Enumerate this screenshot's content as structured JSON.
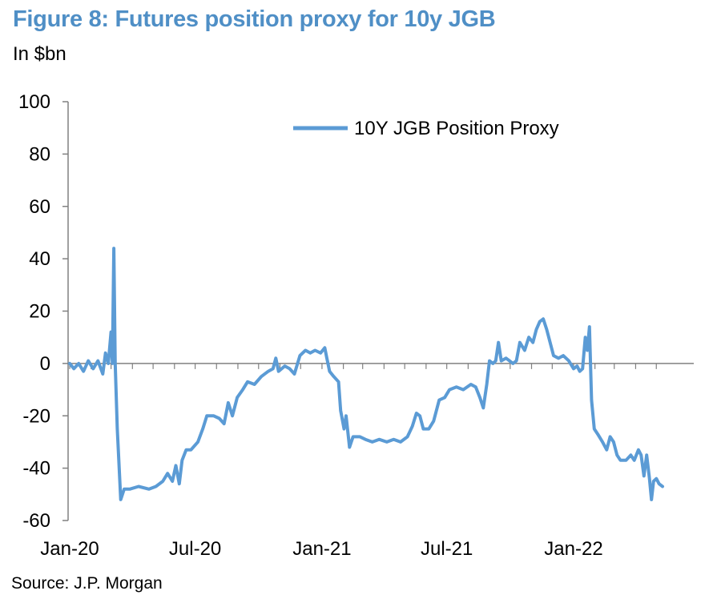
{
  "title": "Figure 8: Futures position proxy for 10y JGB",
  "subtitle": "In $bn",
  "source": "Source: J.P. Morgan",
  "colors": {
    "series": "#5b9bd5",
    "title": "#4f8fc6",
    "axis": "#808080"
  },
  "chart_data": {
    "type": "line",
    "ylim": [
      -60,
      100
    ],
    "yticks": [
      100,
      80,
      60,
      40,
      20,
      0,
      -20,
      -40,
      -60
    ],
    "xlim": [
      "2020-01-01",
      "2022-05-31"
    ],
    "xticks": [
      {
        "label": "Jan-20",
        "date": "2020-01-01"
      },
      {
        "label": "Jul-20",
        "date": "2020-07-01"
      },
      {
        "label": "Jan-21",
        "date": "2021-01-01"
      },
      {
        "label": "Jul-21",
        "date": "2021-07-01"
      },
      {
        "label": "Jan-22",
        "date": "2022-01-01"
      }
    ],
    "grid": false,
    "legend_position": "top-right",
    "series": [
      {
        "name": "10Y JGB Position Proxy",
        "points": [
          [
            "2020-01-01",
            0
          ],
          [
            "2020-01-07",
            -2
          ],
          [
            "2020-01-14",
            0
          ],
          [
            "2020-01-21",
            -3
          ],
          [
            "2020-01-28",
            1
          ],
          [
            "2020-02-04",
            -2
          ],
          [
            "2020-02-11",
            1
          ],
          [
            "2020-02-18",
            -4
          ],
          [
            "2020-02-22",
            4
          ],
          [
            "2020-02-26",
            0
          ],
          [
            "2020-03-01",
            12
          ],
          [
            "2020-03-03",
            0
          ],
          [
            "2020-03-05",
            44
          ],
          [
            "2020-03-07",
            0
          ],
          [
            "2020-03-10",
            -25
          ],
          [
            "2020-03-15",
            -52
          ],
          [
            "2020-03-20",
            -48
          ],
          [
            "2020-03-28",
            -48
          ],
          [
            "2020-04-10",
            -47
          ],
          [
            "2020-04-25",
            -48
          ],
          [
            "2020-05-05",
            -47
          ],
          [
            "2020-05-15",
            -45
          ],
          [
            "2020-05-22",
            -42
          ],
          [
            "2020-05-29",
            -45
          ],
          [
            "2020-06-03",
            -39
          ],
          [
            "2020-06-08",
            -46
          ],
          [
            "2020-06-12",
            -37
          ],
          [
            "2020-06-18",
            -33
          ],
          [
            "2020-06-25",
            -33
          ],
          [
            "2020-07-05",
            -30
          ],
          [
            "2020-07-12",
            -25
          ],
          [
            "2020-07-18",
            -20
          ],
          [
            "2020-07-28",
            -20
          ],
          [
            "2020-08-05",
            -21
          ],
          [
            "2020-08-12",
            -23
          ],
          [
            "2020-08-18",
            -15
          ],
          [
            "2020-08-24",
            -20
          ],
          [
            "2020-08-31",
            -13
          ],
          [
            "2020-09-08",
            -10
          ],
          [
            "2020-09-15",
            -7
          ],
          [
            "2020-09-25",
            -8
          ],
          [
            "2020-10-05",
            -5
          ],
          [
            "2020-10-15",
            -3
          ],
          [
            "2020-10-22",
            -2
          ],
          [
            "2020-10-26",
            2
          ],
          [
            "2020-10-30",
            -3
          ],
          [
            "2020-11-08",
            -1
          ],
          [
            "2020-11-15",
            -2
          ],
          [
            "2020-11-22",
            -4
          ],
          [
            "2020-11-30",
            3
          ],
          [
            "2020-12-08",
            5
          ],
          [
            "2020-12-15",
            4
          ],
          [
            "2020-12-22",
            5
          ],
          [
            "2020-12-30",
            4
          ],
          [
            "2021-01-05",
            6
          ],
          [
            "2021-01-08",
            2
          ],
          [
            "2021-01-12",
            -3
          ],
          [
            "2021-01-18",
            -5
          ],
          [
            "2021-01-25",
            -7
          ],
          [
            "2021-01-28",
            -18
          ],
          [
            "2021-02-02",
            -25
          ],
          [
            "2021-02-05",
            -20
          ],
          [
            "2021-02-10",
            -32
          ],
          [
            "2021-02-15",
            -28
          ],
          [
            "2021-02-25",
            -28
          ],
          [
            "2021-03-05",
            -29
          ],
          [
            "2021-03-15",
            -30
          ],
          [
            "2021-03-25",
            -29
          ],
          [
            "2021-04-05",
            -30
          ],
          [
            "2021-04-15",
            -29
          ],
          [
            "2021-04-25",
            -30
          ],
          [
            "2021-05-05",
            -28
          ],
          [
            "2021-05-12",
            -24
          ],
          [
            "2021-05-18",
            -19
          ],
          [
            "2021-05-23",
            -20
          ],
          [
            "2021-05-28",
            -25
          ],
          [
            "2021-06-05",
            -25
          ],
          [
            "2021-06-12",
            -22
          ],
          [
            "2021-06-20",
            -14
          ],
          [
            "2021-06-28",
            -13
          ],
          [
            "2021-07-05",
            -10
          ],
          [
            "2021-07-15",
            -9
          ],
          [
            "2021-07-25",
            -10
          ],
          [
            "2021-08-05",
            -8
          ],
          [
            "2021-08-12",
            -9
          ],
          [
            "2021-08-18",
            -13
          ],
          [
            "2021-08-23",
            -17
          ],
          [
            "2021-08-28",
            -8
          ],
          [
            "2021-09-01",
            1
          ],
          [
            "2021-09-06",
            0
          ],
          [
            "2021-09-10",
            1
          ],
          [
            "2021-09-14",
            8
          ],
          [
            "2021-09-18",
            1
          ],
          [
            "2021-09-25",
            2
          ],
          [
            "2021-10-05",
            0
          ],
          [
            "2021-10-10",
            1
          ],
          [
            "2021-10-15",
            8
          ],
          [
            "2021-10-22",
            5
          ],
          [
            "2021-10-28",
            10
          ],
          [
            "2021-11-03",
            8
          ],
          [
            "2021-11-08",
            13
          ],
          [
            "2021-11-13",
            16
          ],
          [
            "2021-11-18",
            17
          ],
          [
            "2021-11-23",
            13
          ],
          [
            "2021-11-28",
            8
          ],
          [
            "2021-12-03",
            3
          ],
          [
            "2021-12-10",
            2
          ],
          [
            "2021-12-17",
            3
          ],
          [
            "2021-12-25",
            1
          ],
          [
            "2022-01-01",
            -2
          ],
          [
            "2022-01-06",
            -1
          ],
          [
            "2022-01-10",
            -3
          ],
          [
            "2022-01-14",
            -2
          ],
          [
            "2022-01-18",
            10
          ],
          [
            "2022-01-21",
            5
          ],
          [
            "2022-01-24",
            14
          ],
          [
            "2022-01-27",
            -14
          ],
          [
            "2022-01-31",
            -25
          ],
          [
            "2022-02-05",
            -27
          ],
          [
            "2022-02-12",
            -30
          ],
          [
            "2022-02-18",
            -33
          ],
          [
            "2022-02-23",
            -28
          ],
          [
            "2022-02-28",
            -30
          ],
          [
            "2022-03-05",
            -35
          ],
          [
            "2022-03-10",
            -37
          ],
          [
            "2022-03-18",
            -37
          ],
          [
            "2022-03-25",
            -35
          ],
          [
            "2022-03-30",
            -37
          ],
          [
            "2022-04-05",
            -33
          ],
          [
            "2022-04-09",
            -35
          ],
          [
            "2022-04-13",
            -43
          ],
          [
            "2022-04-17",
            -35
          ],
          [
            "2022-04-21",
            -44
          ],
          [
            "2022-04-24",
            -52
          ],
          [
            "2022-04-27",
            -45
          ],
          [
            "2022-05-01",
            -44
          ],
          [
            "2022-05-05",
            -46
          ],
          [
            "2022-05-10",
            -47
          ]
        ]
      }
    ]
  }
}
